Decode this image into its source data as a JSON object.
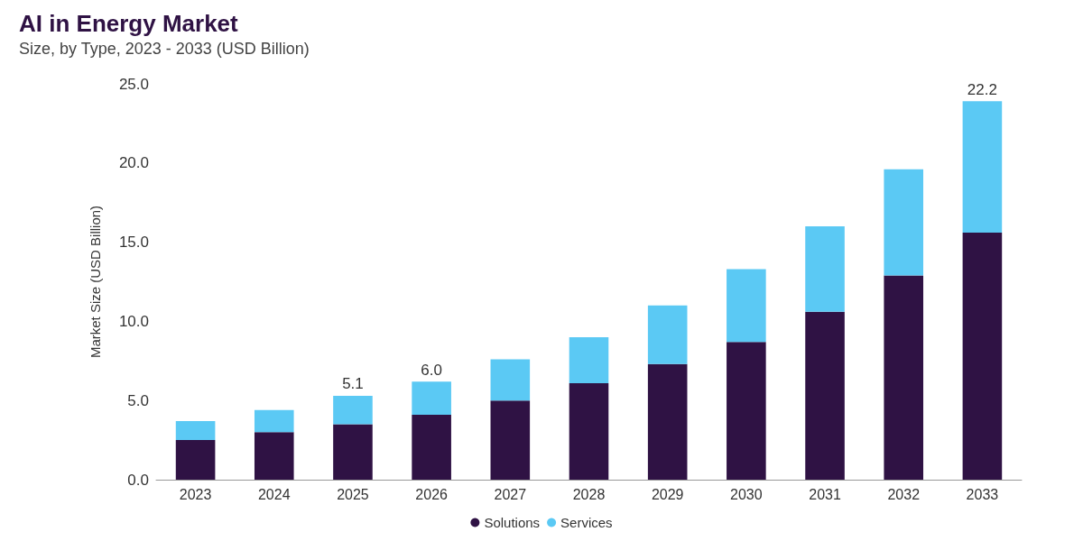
{
  "chart_data": {
    "type": "bar",
    "title": "AI in Energy Market",
    "subtitle": "Size, by Type, 2023 - 2033 (USD Billion)",
    "ylabel": "Market Size (USD Billion)",
    "categories": [
      "2023",
      "2024",
      "2025",
      "2026",
      "2027",
      "2028",
      "2029",
      "2030",
      "2031",
      "2032",
      "2033"
    ],
    "stacked": true,
    "series": [
      {
        "name": "Solutions",
        "color": "#2f1244",
        "values": [
          2.5,
          3.0,
          3.5,
          4.1,
          5.0,
          6.1,
          7.3,
          8.7,
          10.6,
          12.9,
          15.6
        ]
      },
      {
        "name": "Services",
        "color": "#5bc9f4",
        "values": [
          1.2,
          1.4,
          1.8,
          2.1,
          2.6,
          2.9,
          3.7,
          4.6,
          5.4,
          6.7,
          8.3
        ]
      }
    ],
    "annotations": [
      {
        "text": "5.1",
        "x": "2025",
        "y": 5.3
      },
      {
        "text": "6.0",
        "x": "2026",
        "y": 6.2
      },
      {
        "text": "22.2",
        "x": "2033",
        "y": 23.9
      }
    ],
    "ylim": [
      0,
      25
    ],
    "yticks": [
      {
        "value": 0,
        "label": "0.0"
      },
      {
        "value": 5,
        "label": "5.0"
      },
      {
        "value": 10,
        "label": "10.0"
      },
      {
        "value": 15,
        "label": "15.0"
      },
      {
        "value": 20,
        "label": "20.0"
      },
      {
        "value": 25,
        "label": "25.0"
      }
    ],
    "grid": false,
    "legend": "bottom"
  }
}
